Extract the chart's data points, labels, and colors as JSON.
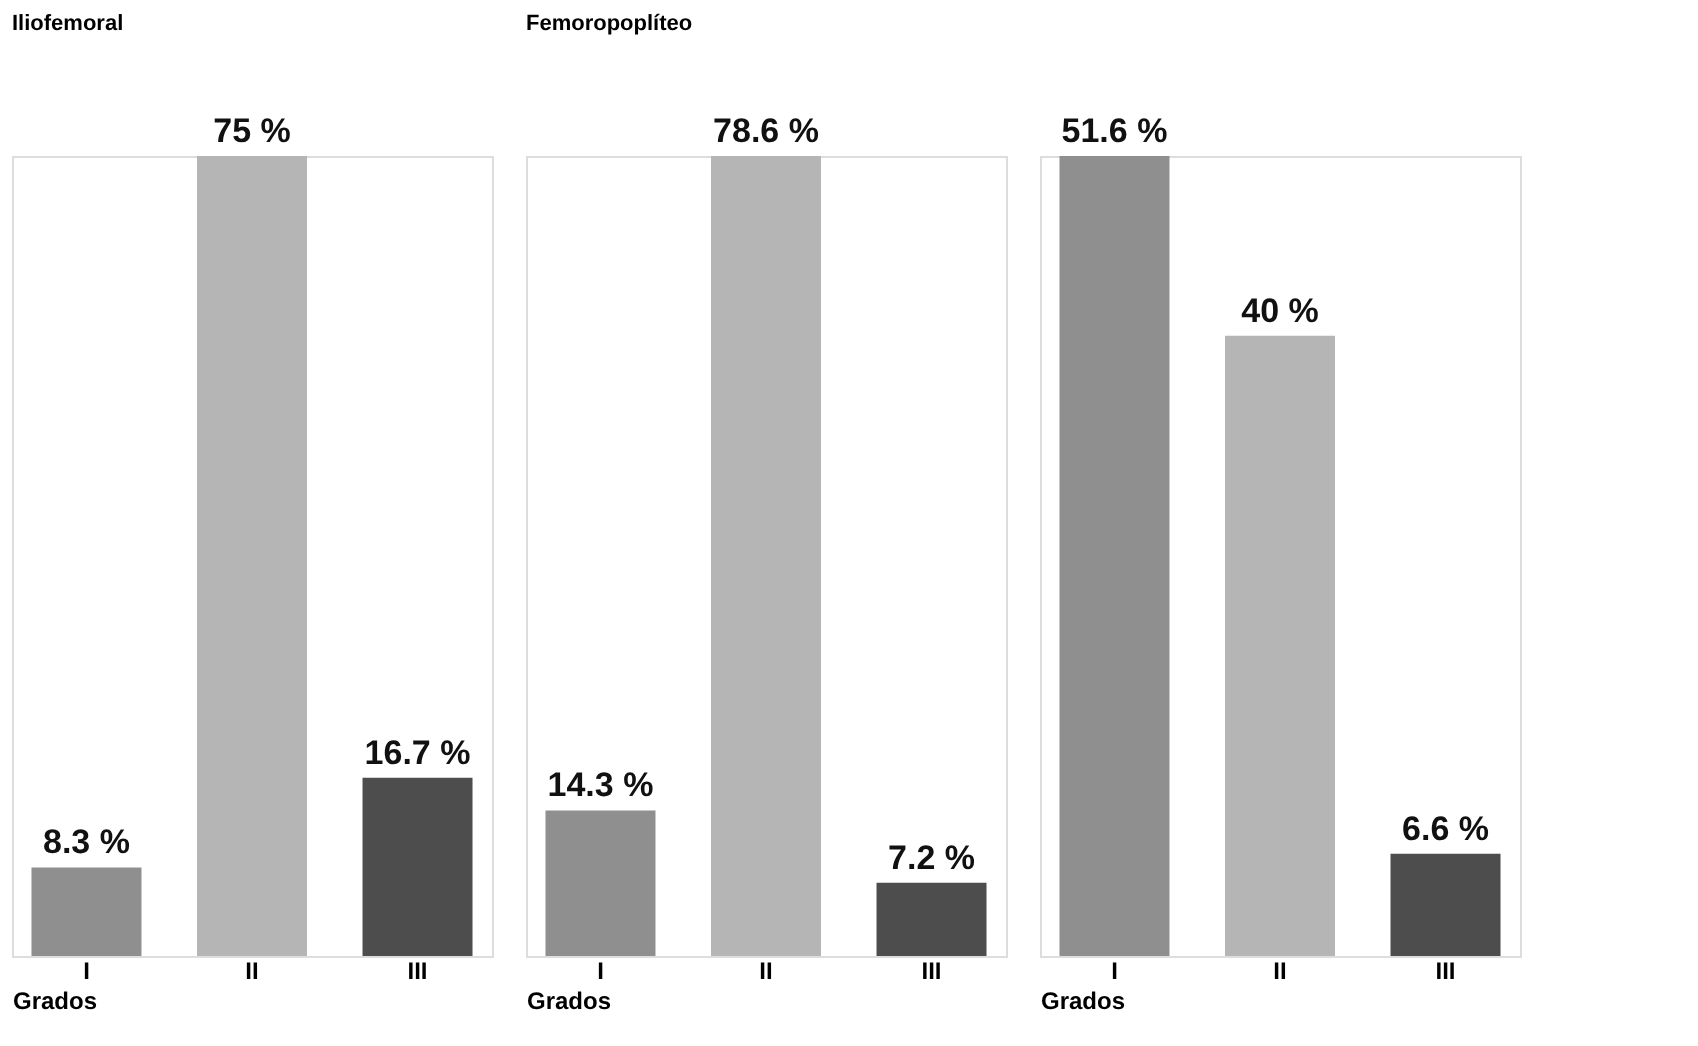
{
  "chart_data": [
    {
      "type": "bar",
      "title": "Iliofemoral",
      "xlabel": "Grados",
      "categories": [
        "I",
        "II",
        "III"
      ],
      "values": [
        8.3,
        75,
        16.7
      ],
      "colors": [
        "#8f8f8f",
        "#b5b5b5",
        "#4d4d4d"
      ],
      "value_labels": [
        "8.3 %",
        "75 %",
        "16.7 %"
      ],
      "tick_labels": "x"
    },
    {
      "type": "bar",
      "title": "Femoropoplíteo",
      "xlabel": "Grados",
      "categories": [
        "I",
        "II",
        "III"
      ],
      "values": [
        14.3,
        78.6,
        7.2
      ],
      "colors": [
        "#8f8f8f",
        "#b5b5b5",
        "#4d4d4d"
      ],
      "value_labels": [
        "14.3 %",
        "78.6 %",
        "7.2 %"
      ],
      "tick_labels": "x"
    },
    {
      "type": "bar",
      "xlabel": "Grados",
      "categories": [
        "I",
        "II",
        "III"
      ],
      "values": [
        51.6,
        40,
        6.6
      ],
      "colors": [
        "#8f8f8f",
        "#b5b5b5",
        "#4d4d4d"
      ],
      "value_labels": [
        "51.6 %",
        "40 %",
        "6.6 %"
      ],
      "tick_labels": "x"
    }
  ]
}
